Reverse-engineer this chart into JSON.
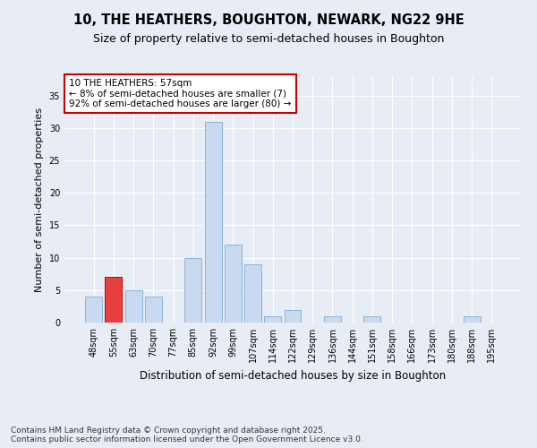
{
  "title": "10, THE HEATHERS, BOUGHTON, NEWARK, NG22 9HE",
  "subtitle": "Size of property relative to semi-detached houses in Boughton",
  "xlabel": "Distribution of semi-detached houses by size in Boughton",
  "ylabel": "Number of semi-detached properties",
  "categories": [
    "48sqm",
    "55sqm",
    "63sqm",
    "70sqm",
    "77sqm",
    "85sqm",
    "92sqm",
    "99sqm",
    "107sqm",
    "114sqm",
    "122sqm",
    "129sqm",
    "136sqm",
    "144sqm",
    "151sqm",
    "158sqm",
    "166sqm",
    "173sqm",
    "180sqm",
    "188sqm",
    "195sqm"
  ],
  "values": [
    4,
    7,
    5,
    4,
    0,
    10,
    31,
    12,
    9,
    1,
    2,
    0,
    1,
    0,
    1,
    0,
    0,
    0,
    0,
    1,
    0
  ],
  "bar_color": "#c9d9f0",
  "bar_edge_color": "#8ab4d9",
  "highlight_bar_index": 1,
  "highlight_bar_color": "#e84040",
  "highlight_bar_edge_color": "#c00000",
  "annotation_text": "10 THE HEATHERS: 57sqm\n← 8% of semi-detached houses are smaller (7)\n92% of semi-detached houses are larger (80) →",
  "annotation_box_color": "#ffffff",
  "annotation_box_edge_color": "#cc0000",
  "footnote": "Contains HM Land Registry data © Crown copyright and database right 2025.\nContains public sector information licensed under the Open Government Licence v3.0.",
  "bg_color": "#e8edf5",
  "plot_bg_color": "#e8edf5",
  "ylim": [
    0,
    38
  ],
  "yticks": [
    0,
    5,
    10,
    15,
    20,
    25,
    30,
    35
  ],
  "title_fontsize": 10.5,
  "subtitle_fontsize": 9,
  "xlabel_fontsize": 8.5,
  "ylabel_fontsize": 8,
  "tick_fontsize": 7,
  "annotation_fontsize": 7.5,
  "footnote_fontsize": 6.5
}
